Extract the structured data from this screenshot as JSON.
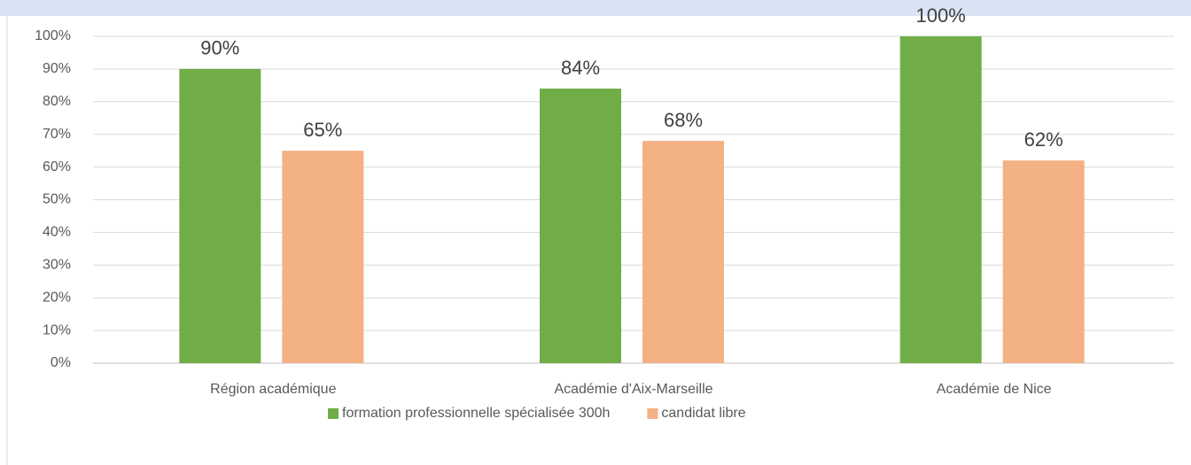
{
  "chart_data": {
    "type": "bar",
    "categories": [
      "Région académique",
      "Académie d'Aix-Marseille",
      "Académie de Nice"
    ],
    "series": [
      {
        "name": "formation professionnelle spécialisée 300h",
        "color": "#70ad47",
        "values": [
          90,
          84,
          100
        ],
        "value_labels": [
          "90%",
          "84%",
          "100%"
        ]
      },
      {
        "name": "candidat libre",
        "color": "#f4b183",
        "values": [
          65,
          68,
          62
        ],
        "value_labels": [
          "65%",
          "68%",
          "62%"
        ]
      }
    ],
    "ylim": [
      0,
      100
    ],
    "yticks": [
      {
        "value": 0,
        "label": "0%"
      },
      {
        "value": 10,
        "label": "10%"
      },
      {
        "value": 20,
        "label": "20%"
      },
      {
        "value": 30,
        "label": "30%"
      },
      {
        "value": 40,
        "label": "40%"
      },
      {
        "value": 50,
        "label": "50%"
      },
      {
        "value": 60,
        "label": "60%"
      },
      {
        "value": 70,
        "label": "70%"
      },
      {
        "value": 80,
        "label": "80%"
      },
      {
        "value": 90,
        "label": "90%"
      },
      {
        "value": 100,
        "label": "100%"
      }
    ],
    "grid": true,
    "legend": "bottom"
  }
}
